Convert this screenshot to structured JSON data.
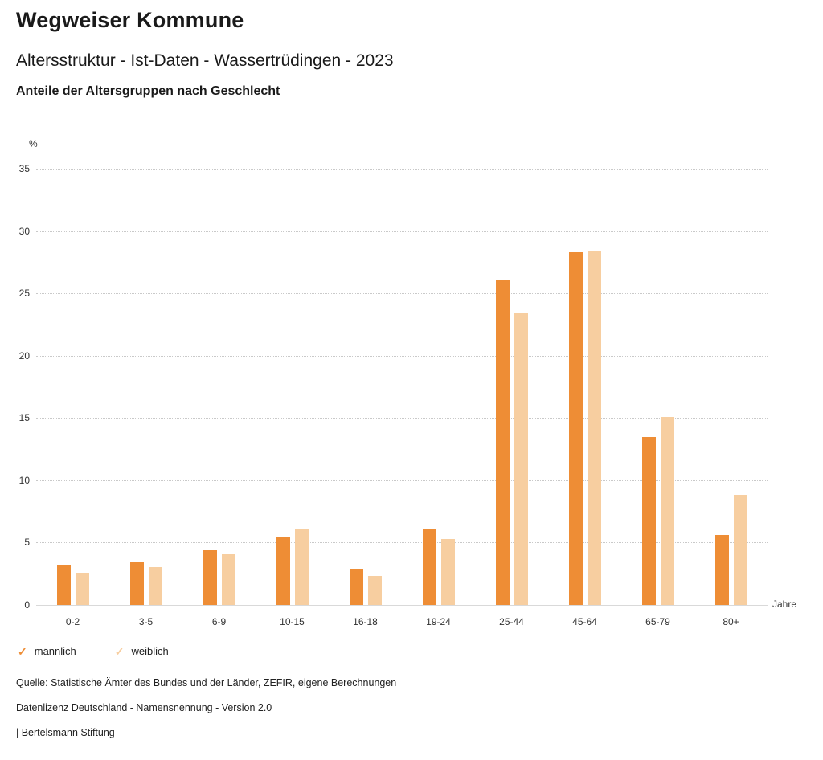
{
  "header": {
    "title": "Wegweiser Kommune",
    "subtitle": "Altersstruktur - Ist-Daten - Wassertrüdingen - 2023",
    "section_title": "Anteile der Altersgruppen nach Geschlecht"
  },
  "chart_data": {
    "type": "bar",
    "title": "Anteile der Altersgruppen nach Geschlecht",
    "categories": [
      "0-2",
      "3-5",
      "6-9",
      "10-15",
      "16-18",
      "19-24",
      "25-44",
      "45-64",
      "65-79",
      "80+"
    ],
    "series": [
      {
        "name": "männlich",
        "color": "#EE8D35",
        "values": [
          3.2,
          3.4,
          4.4,
          5.5,
          2.9,
          6.1,
          26.1,
          28.3,
          13.5,
          5.6
        ]
      },
      {
        "name": "weiblich",
        "color": "#F7CEA0",
        "values": [
          2.6,
          3.0,
          4.1,
          6.1,
          2.3,
          5.3,
          23.4,
          28.4,
          15.1,
          8.8
        ]
      }
    ],
    "xlabel": "Jahre",
    "ylabel": "%",
    "ylim": [
      0,
      35
    ],
    "ytick_step": 5,
    "grid": true,
    "legend_position": "bottom"
  },
  "legend": {
    "check_glyph": "✓",
    "items": [
      {
        "label": "männlich",
        "color": "#EE8D35"
      },
      {
        "label": "weiblich",
        "color": "#F7CEA0"
      }
    ]
  },
  "footer": {
    "source": "Quelle: Statistische Ämter des Bundes und der Länder, ZEFIR, eigene Berechnungen",
    "license": "Datenlizenz Deutschland - Namensnennung - Version 2.0",
    "attribution": "| Bertelsmann Stiftung"
  }
}
